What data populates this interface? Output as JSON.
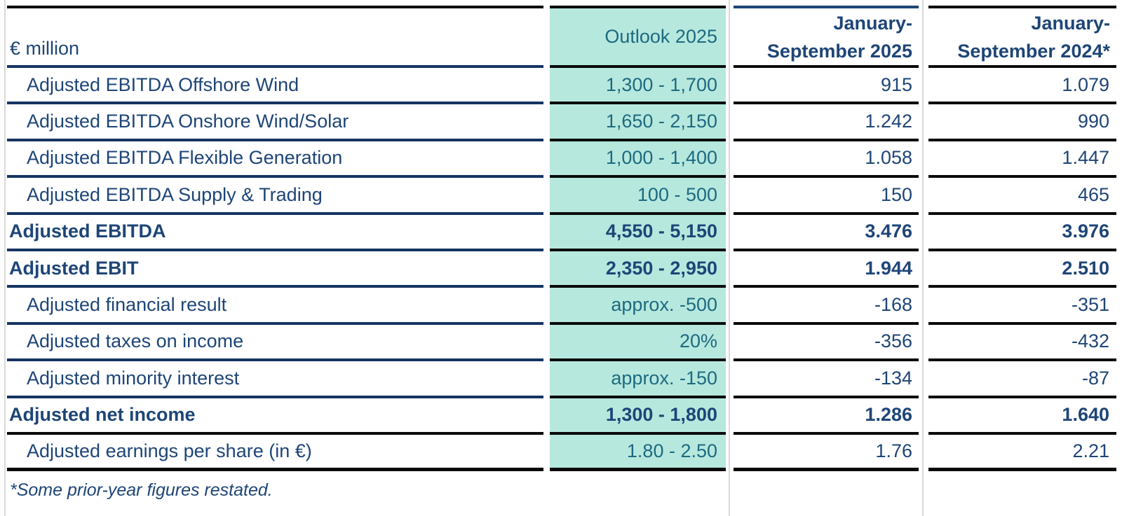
{
  "table": {
    "unit_label": "€ million",
    "columns": {
      "outlook": {
        "label": "Outlook 2025",
        "highlighted": true
      },
      "period_2025": {
        "label_line1": "January-",
        "label_line2": "September 2025"
      },
      "period_2024": {
        "label_line1": "January-",
        "label_line2": "September 2024*"
      }
    },
    "rows": [
      {
        "label": "Adjusted EBITDA Offshore Wind",
        "bold": false,
        "outlook": "1,300 - 1,700",
        "period_2025": "915",
        "period_2024": "1.079"
      },
      {
        "label": "Adjusted EBITDA Onshore Wind/Solar",
        "bold": false,
        "outlook": "1,650 - 2,150",
        "period_2025": "1.242",
        "period_2024": "990"
      },
      {
        "label": "Adjusted EBITDA Flexible Generation",
        "bold": false,
        "outlook": "1,000 - 1,400",
        "period_2025": "1.058",
        "period_2024": "1.447"
      },
      {
        "label": "Adjusted EBITDA Supply & Trading",
        "bold": false,
        "outlook": "100 - 500",
        "period_2025": "150",
        "period_2024": "465"
      },
      {
        "label": "Adjusted EBITDA",
        "bold": true,
        "outlook": "4,550 - 5,150",
        "period_2025": "3.476",
        "period_2024": "3.976"
      },
      {
        "label": "Adjusted EBIT",
        "bold": true,
        "outlook": "2,350 - 2,950",
        "period_2025": "1.944",
        "period_2024": "2.510"
      },
      {
        "label": "Adjusted financial result",
        "bold": false,
        "outlook": "approx. -500",
        "period_2025": "-168",
        "period_2024": "-351"
      },
      {
        "label": "Adjusted taxes on income",
        "bold": false,
        "outlook": "20%",
        "period_2025": "-356",
        "period_2024": "-432"
      },
      {
        "label": "Adjusted minority interest",
        "bold": false,
        "outlook": "approx. -150",
        "period_2025": "-134",
        "period_2024": "-87"
      },
      {
        "label": "Adjusted net income",
        "bold": true,
        "outlook": "1,300 - 1,800",
        "period_2025": "1.286",
        "period_2024": "1.640"
      },
      {
        "label": "Adjusted earnings per share (in €)",
        "bold": false,
        "outlook": "1.80 - 2.50",
        "period_2025": "1.76",
        "period_2024": "2.21"
      }
    ],
    "footnote": "*Some prior-year figures restated."
  },
  "colors": {
    "highlight_mint": "#b7e8de",
    "petrol_text": "#1d6a80",
    "navy_text": "#1e4577",
    "navy_line": "#163463",
    "black_line": "#0a0a0a",
    "grey_guide": "#d9d9d9"
  }
}
